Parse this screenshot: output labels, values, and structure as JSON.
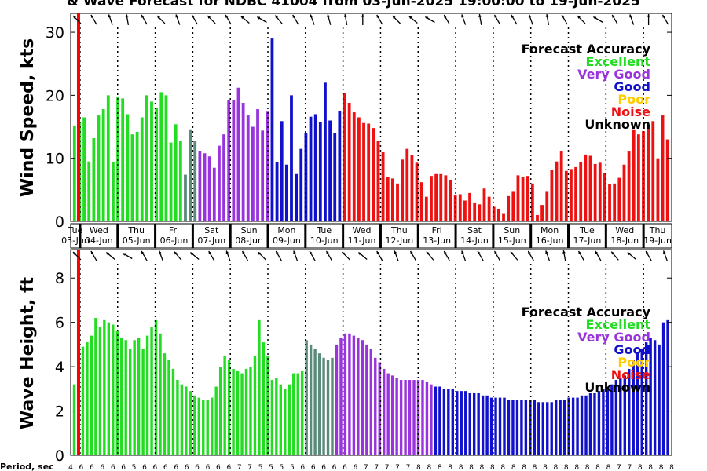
{
  "title": "& Wave Forecast for NDBC 41004 from 03-Jun-2025 19:00:00 to 19-Jun-2025",
  "period_label": "Period, sec",
  "colors": {
    "Excellent": "#22dd22",
    "Very Good": "#9933dd",
    "Good": "#1111cc",
    "Poor": "#ffcc00",
    "Noise": "#ee1111",
    "Unknown": "#000000",
    "Mixed": "#5a8a7a",
    "Mixed2": "#6a5fae",
    "Current": "#ff0000"
  },
  "chart_data": [
    {
      "type": "bar",
      "ylabel": "Wind Speed, kts",
      "ylim": [
        0,
        32
      ],
      "yticks": [
        0,
        10,
        20,
        30
      ],
      "legend": {
        "title": "Forecast Accuracy",
        "entries": [
          "Excellent",
          "Very Good",
          "Good",
          "Poor",
          "Noise",
          "Unknown"
        ],
        "placement": "top-right"
      },
      "x_range": [
        0,
        64
      ],
      "current_time_x": 0.5,
      "day_boundaries": [
        1,
        5,
        9,
        13,
        17,
        21,
        25,
        29,
        33,
        37,
        41,
        45,
        49,
        53,
        57,
        61
      ],
      "day_labels": [
        [
          "Tue",
          "03-Jun"
        ],
        [
          "Wed",
          "04-Jun"
        ],
        [
          "Thu",
          "05-Jun"
        ],
        [
          "Fri",
          "06-Jun"
        ],
        [
          "Sat",
          "07-Jun"
        ],
        [
          "Sun",
          "08-Jun"
        ],
        [
          "Mon",
          "09-Jun"
        ],
        [
          "Tue",
          "10-Jun"
        ],
        [
          "Wed",
          "11-Jun"
        ],
        [
          "Thu",
          "12-Jun"
        ],
        [
          "Fri",
          "13-Jun"
        ],
        [
          "Sat",
          "14-Jun"
        ],
        [
          "Sun",
          "15-Jun"
        ],
        [
          "Mon",
          "16-Jun"
        ],
        [
          "Tue",
          "17-Jun"
        ],
        [
          "Wed",
          "18-Jun"
        ],
        [
          "Thu",
          "19-Jun"
        ]
      ],
      "series": [
        {
          "group": "Excellent",
          "x_start": 0,
          "values": [
            15.2,
            15.6,
            16.5,
            9.5,
            13.2,
            16.8,
            17.8,
            20.0,
            9.4,
            19.8,
            19.5,
            17.0,
            13.8,
            14.2,
            16.5,
            20.0,
            19.0,
            18.0,
            20.5,
            20.0,
            12.5,
            15.4,
            12.7
          ]
        },
        {
          "group": "Mixed",
          "x_start": 23,
          "values": [
            7.4,
            14.6,
            12.8
          ]
        },
        {
          "group": "Very Good",
          "x_start": 26,
          "values": [
            11.2,
            10.8,
            10.3,
            8.5,
            12.0,
            13.8,
            19.2,
            19.3,
            21.2,
            18.8,
            16.8,
            15.0,
            17.8,
            14.4,
            17.4
          ]
        },
        {
          "group": "Good",
          "x_start": 41,
          "values": [
            29.0,
            9.4,
            15.9,
            9.0,
            20.0,
            7.5,
            11.5,
            14.0,
            16.6,
            17.0,
            15.8,
            22.0,
            16.0,
            14.0,
            17.5
          ]
        },
        {
          "group": "Noise",
          "x_start": 56,
          "values": [
            20.3,
            18.8,
            17.3,
            16.5,
            15.6,
            15.5,
            14.8,
            12.8,
            11.0,
            7.0,
            6.8,
            6.0,
            9.8,
            11.5,
            10.5,
            9.3,
            6.2,
            3.9,
            7.2,
            7.5,
            7.5,
            7.3,
            6.6,
            4.1,
            4.3,
            3.3,
            4.5,
            3.0,
            2.7,
            5.2,
            3.9,
            2.3,
            2.0,
            1.3,
            4.0,
            4.8,
            7.3,
            7.1,
            7.2,
            6.0,
            1.0,
            2.6,
            4.8,
            8.1,
            9.5,
            11.2,
            8.0,
            8.3,
            8.6,
            9.4,
            10.6,
            10.4,
            9.1,
            9.3,
            7.6,
            5.9,
            6.0,
            6.9,
            9.0,
            11.2,
            14.6,
            13.8,
            14.3,
            15.3,
            15.9,
            10.0,
            16.8,
            13.0
          ]
        }
      ],
      "arrows_deg": [
        315,
        300,
        290,
        280,
        300,
        315,
        290,
        300,
        315,
        300,
        320,
        330,
        310,
        300,
        290,
        285,
        280,
        270,
        300,
        315,
        320,
        330,
        300,
        290,
        280,
        300,
        300,
        290,
        280,
        300,
        315,
        330,
        300,
        290,
        270,
        300
      ]
    },
    {
      "type": "bar",
      "ylabel": "Wave Height, ft",
      "ylim": [
        0,
        9
      ],
      "yticks": [
        0,
        2,
        4,
        6,
        8
      ],
      "legend": {
        "title": "Forecast Accuracy",
        "entries": [
          "Excellent",
          "Very Good",
          "Good",
          "Poor",
          "Noise",
          "Unknown"
        ],
        "placement": "top-right"
      },
      "x_range": [
        0,
        64
      ],
      "current_time_x": 0.5,
      "day_boundaries": [
        1,
        5,
        9,
        13,
        17,
        21,
        25,
        29,
        33,
        37,
        41,
        45,
        49,
        53,
        57,
        61
      ],
      "series": [
        {
          "group": "Excellent",
          "x_start": 0,
          "values": [
            3.2,
            3.8,
            4.9,
            5.1,
            5.4,
            6.2,
            5.8,
            6.1,
            6.0,
            5.9,
            5.6,
            5.3,
            5.2,
            4.8,
            5.2,
            5.3,
            4.8,
            5.4,
            5.8,
            6.1,
            5.5,
            4.6,
            4.3,
            3.9,
            3.4,
            3.2,
            3.1,
            2.9,
            2.7,
            2.6,
            2.5,
            2.5,
            2.6,
            3.1,
            4.0,
            4.5,
            4.3,
            3.9,
            3.8,
            3.7,
            3.9,
            4.0,
            4.5,
            6.1,
            5.1,
            4.5,
            3.4,
            3.5,
            3.2,
            3.0,
            3.2,
            3.7,
            3.7,
            3.8
          ]
        },
        {
          "group": "Mixed",
          "x_start": 54,
          "values": [
            5.2,
            5.0,
            4.8,
            4.6,
            4.4,
            4.3,
            4.4
          ]
        },
        {
          "group": "Very Good",
          "x_start": 61,
          "values": [
            5.0,
            5.3,
            5.5,
            5.5,
            5.4,
            5.3,
            5.2,
            5.0,
            4.8,
            4.4,
            4.2,
            3.9,
            3.7,
            3.6,
            3.5,
            3.4,
            3.4,
            3.4,
            3.4,
            3.4,
            3.4,
            3.3,
            3.2
          ]
        },
        {
          "group": "Good",
          "x_start": 84,
          "values": [
            3.1,
            3.1,
            3.0,
            3.0,
            3.0,
            2.9,
            2.9,
            2.9,
            2.8,
            2.8,
            2.8,
            2.7,
            2.7,
            2.6,
            2.6,
            2.6,
            2.6,
            2.5,
            2.5,
            2.5,
            2.5,
            2.5,
            2.5,
            2.5,
            2.4,
            2.4,
            2.4,
            2.4,
            2.5,
            2.5,
            2.5,
            2.6,
            2.6,
            2.6,
            2.7,
            2.7,
            2.8,
            2.8,
            2.9,
            3.0,
            3.1,
            3.2,
            3.4,
            3.5,
            3.6,
            3.9,
            4.3,
            4.6,
            4.8,
            5.1,
            5.3,
            5.2,
            5.0,
            6.0,
            6.1
          ]
        }
      ],
      "period_values": [
        "4",
        "6",
        "6",
        "6",
        "6",
        "6",
        "5",
        "6",
        "6",
        "6",
        "6",
        "6",
        "6",
        "6",
        "6",
        "6",
        "7",
        "7",
        "5",
        "5",
        "5",
        "5",
        "6",
        "6",
        "6",
        "6",
        "6",
        "6",
        "7",
        "7",
        "7",
        "7",
        "7",
        "8",
        "8",
        "8",
        "8",
        "8",
        "8",
        "8",
        "8",
        "8",
        "8",
        "8",
        "8",
        "8",
        "8",
        "8",
        "8",
        "8",
        "8",
        "8",
        "7",
        "7",
        "8",
        "8",
        "8",
        "8"
      ],
      "arrows_deg": [
        315,
        300,
        320,
        330,
        300,
        290,
        310,
        320,
        300,
        290,
        300,
        315,
        300,
        290,
        300,
        300,
        315,
        320,
        300,
        290,
        300,
        310,
        300,
        290,
        300,
        300,
        310,
        300,
        290,
        280,
        300,
        300,
        310,
        320,
        300,
        290
      ]
    }
  ]
}
